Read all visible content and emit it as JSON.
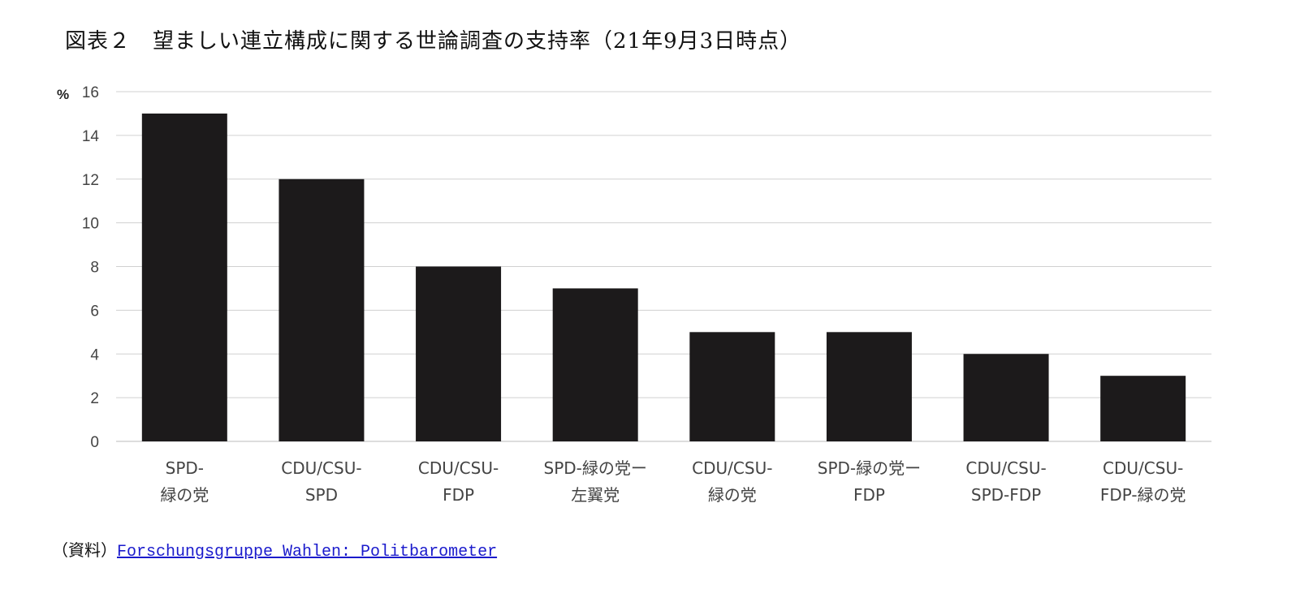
{
  "title": "図表２　望ましい連立構成に関する世論調査の支持率（21年9月3日時点）",
  "source": {
    "prefix": "（資料）",
    "link_text": "Forschungsgruppe Wahlen: Politbarometer"
  },
  "chart_data": {
    "type": "bar",
    "title": "",
    "ylabel": "%",
    "ylim": [
      0,
      16
    ],
    "yticks": [
      0,
      2,
      4,
      6,
      8,
      10,
      12,
      14,
      16
    ],
    "grid": true,
    "categories": [
      [
        "SPD-",
        "緑の党"
      ],
      [
        "CDU/CSU-",
        "SPD"
      ],
      [
        "CDU/CSU-",
        "FDP"
      ],
      [
        "SPD-緑の党ー",
        "左翼党"
      ],
      [
        "CDU/CSU-",
        "緑の党"
      ],
      [
        "SPD-緑の党ー",
        "FDP"
      ],
      [
        "CDU/CSU-",
        "SPD-FDP"
      ],
      [
        "CDU/CSU-",
        "FDP-緑の党"
      ]
    ],
    "values": [
      15,
      12,
      8,
      7,
      5,
      5,
      4,
      3
    ],
    "bar_color": "#1c1a1b",
    "grid_color": "#d0d0d0"
  }
}
